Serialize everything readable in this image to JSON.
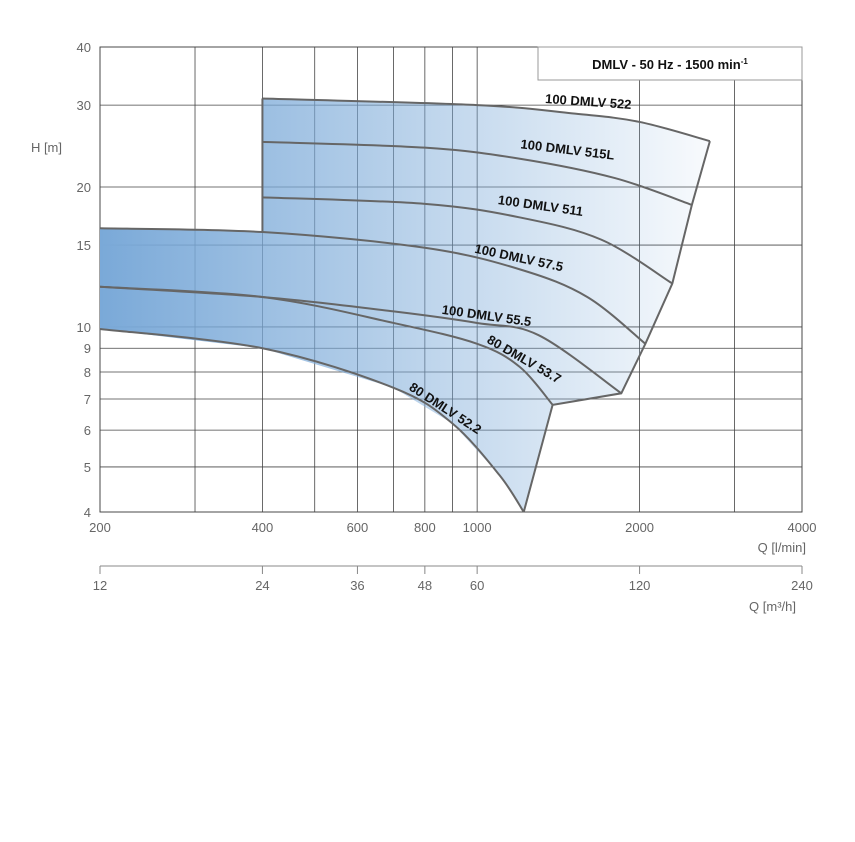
{
  "chart_data": {
    "type": "line",
    "title": "DMLV - 50 Hz - 1500 min",
    "title_superscript": "-1",
    "ylabel": "H [m]",
    "xlabel": "Q [l/min]",
    "x2label": "Q [m³/h]",
    "x_scale": "log",
    "y_scale": "log",
    "xlim": [
      200,
      4000
    ],
    "ylim": [
      4,
      40
    ],
    "x_ticks": [
      200,
      400,
      600,
      800,
      1000,
      2000,
      4000
    ],
    "x_gridlines": [
      200,
      300,
      400,
      500,
      600,
      700,
      800,
      900,
      1000,
      2000,
      3000,
      4000
    ],
    "y_ticks": [
      4,
      5,
      6,
      7,
      8,
      9,
      10,
      15,
      20,
      30,
      40
    ],
    "x2_ticks": [
      12,
      24,
      36,
      48,
      60,
      120,
      240
    ],
    "grid": true,
    "fill_color": "#7aa9d8",
    "line_color": "#666666",
    "series": [
      {
        "name": "100 DMLV 522",
        "x": [
          400,
          1000,
          1500,
          2000,
          2700
        ],
        "y": [
          31,
          30,
          28.8,
          27.6,
          25.1
        ]
      },
      {
        "name": "100 DMLV 515L",
        "x": [
          400,
          800,
          1200,
          1800,
          2500
        ],
        "y": [
          25,
          24.3,
          23,
          20.9,
          18.3
        ]
      },
      {
        "name": "100 DMLV 511",
        "x": [
          400,
          800,
          1200,
          1700,
          2300
        ],
        "y": [
          19,
          18.4,
          17.2,
          15.4,
          12.4
        ]
      },
      {
        "name": "100 DMLV 57.5",
        "x": [
          200,
          400,
          800,
          1200,
          1600,
          2050
        ],
        "y": [
          16.3,
          16,
          14.8,
          13.3,
          11.6,
          9.2
        ]
      },
      {
        "name": "100 DMLV 55.5",
        "x": [
          200,
          400,
          700,
          1000,
          1300,
          1850
        ],
        "y": [
          12.2,
          11.6,
          10.8,
          10.2,
          9.6,
          7.2
        ]
      },
      {
        "name": "80 DMLV 53.7",
        "x": [
          200,
          400,
          700,
          1000,
          1200,
          1380
        ],
        "y": [
          12.2,
          11.6,
          10.2,
          9.2,
          8.2,
          6.8
        ]
      },
      {
        "name": "80 DMLV 52.2",
        "x": [
          200,
          400,
          700,
          900,
          1100,
          1220
        ],
        "y": [
          9.9,
          9,
          7.4,
          6.2,
          4.8,
          4
        ]
      }
    ]
  }
}
